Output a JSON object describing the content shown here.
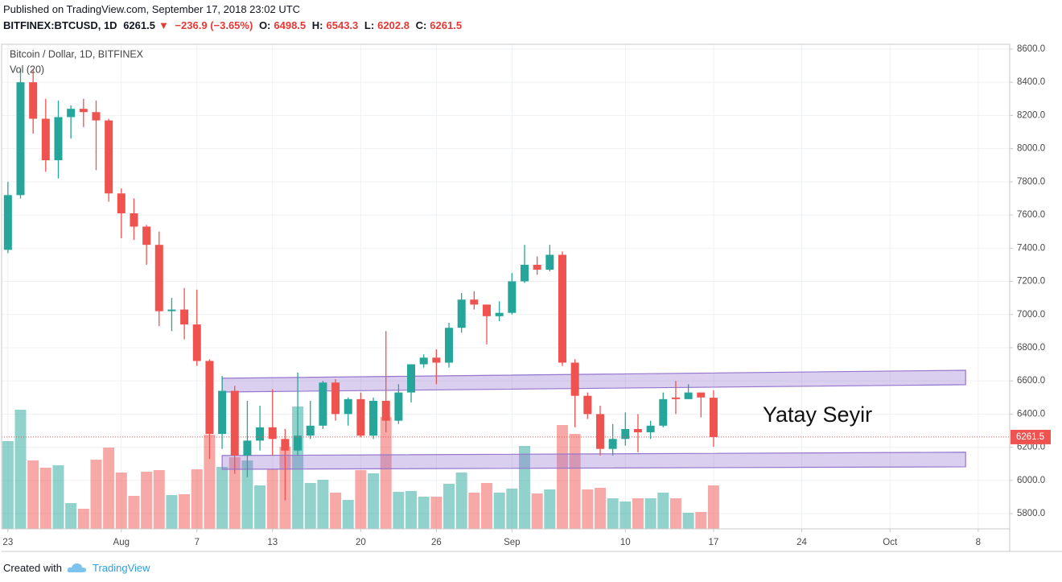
{
  "header": {
    "published": "Published on TradingView.com, September 17, 2018 23:02 UTC",
    "symbol": "BITFINEX:BTCUSD, 1D",
    "arrow": "▼",
    "change": "−236.9 (−3.65%)",
    "ohlc_labels": [
      "O:",
      "H:",
      "L:",
      "C:"
    ]
  },
  "footer": {
    "created_with": "Created with",
    "brand": "TradingView"
  },
  "chart_data": {
    "type": "candlestick",
    "title": "Bitcoin / Dollar, 1D, BITFINEX",
    "volume_label": "Vol (20)",
    "annotation": "Yatay Seyir",
    "up_color": "#26a69a",
    "down_color": "#ef5350",
    "band_color": "#9575cd",
    "grid": true,
    "x": [
      0,
      1,
      2,
      3,
      4,
      5,
      6,
      7,
      8,
      9,
      10,
      11,
      12,
      13,
      14,
      15,
      16,
      17,
      18,
      19,
      20,
      21,
      22,
      23,
      24,
      25,
      26,
      27,
      28,
      29,
      30,
      31,
      32,
      33,
      34,
      35,
      36,
      37,
      38,
      39,
      40,
      41,
      42,
      43,
      44,
      45,
      46,
      47,
      48,
      49,
      50,
      51,
      52,
      53,
      54,
      55,
      56
    ],
    "open": [
      7390,
      7720,
      8400,
      8180,
      7930,
      8190,
      8240,
      8220,
      8170,
      7730,
      7610,
      7530,
      7420,
      7020,
      7030,
      6940,
      6720,
      6280,
      6540,
      6150,
      6240,
      6320,
      6250,
      6180,
      6270,
      6330,
      6590,
      6400,
      6490,
      6270,
      6480,
      6360,
      6530,
      6700,
      6740,
      6710,
      6920,
      7090,
      7060,
      6990,
      7010,
      7200,
      7300,
      7270,
      7360,
      6710,
      6510,
      6400,
      6190,
      6250,
      6310,
      6290,
      6330,
      6500,
      6490,
      6530,
      6498.5
    ],
    "high": [
      7800,
      8480,
      8480,
      8300,
      8290,
      8260,
      8300,
      8290,
      8180,
      7760,
      7700,
      7540,
      7500,
      7100,
      7160,
      7150,
      6730,
      6630,
      6570,
      6480,
      6450,
      6550,
      6310,
      6650,
      6480,
      6600,
      6610,
      6500,
      6530,
      6500,
      6900,
      6580,
      6700,
      6760,
      6790,
      6950,
      7130,
      7140,
      7060,
      7080,
      7250,
      7420,
      7350,
      7420,
      7380,
      6730,
      6530,
      6450,
      6340,
      6410,
      6400,
      6360,
      6530,
      6600,
      6580,
      6530,
      6543.3
    ],
    "low": [
      7370,
      7700,
      8090,
      7860,
      7820,
      8060,
      8130,
      7870,
      7680,
      7460,
      7450,
      7300,
      6930,
      6900,
      6850,
      6690,
      6130,
      6190,
      6040,
      6020,
      6180,
      6150,
      5880,
      6150,
      6250,
      6310,
      6360,
      6330,
      6260,
      6250,
      6290,
      6340,
      6470,
      6680,
      6580,
      6680,
      6890,
      7030,
      6820,
      6960,
      7000,
      7190,
      7240,
      7260,
      6690,
      6320,
      6370,
      6150,
      6150,
      6210,
      6170,
      6250,
      6320,
      6400,
      6490,
      6380,
      6202.8
    ],
    "close": [
      7720,
      8400,
      8180,
      7930,
      8190,
      8240,
      8220,
      8170,
      7730,
      7610,
      7530,
      7420,
      7020,
      7030,
      6940,
      6720,
      6280,
      6540,
      6150,
      6240,
      6320,
      6250,
      6180,
      6270,
      6330,
      6590,
      6400,
      6490,
      6270,
      6480,
      6360,
      6530,
      6700,
      6740,
      6710,
      6920,
      7090,
      7060,
      6990,
      7010,
      7200,
      7300,
      7270,
      7360,
      6710,
      6510,
      6400,
      6190,
      6250,
      6310,
      6290,
      6330,
      6490,
      6490,
      6530,
      6500,
      6261.5
    ],
    "volume": [
      109,
      148,
      85,
      76,
      79,
      32,
      25,
      86,
      101,
      70,
      41,
      71,
      73,
      42,
      43,
      74,
      117,
      77,
      89,
      85,
      54,
      74,
      102,
      152,
      57,
      61,
      45,
      36,
      73,
      69,
      139,
      46,
      47,
      40,
      40,
      56,
      70,
      45,
      57,
      45,
      50,
      103,
      44,
      49,
      129,
      118,
      49,
      51,
      38,
      34,
      38,
      38,
      45,
      38,
      20,
      21,
      54
    ],
    "bands": [
      {
        "x": [
          17,
          76
        ],
        "low": [
          6533,
          6577
        ],
        "high": [
          6616,
          6664
        ]
      },
      {
        "x": [
          17,
          76
        ],
        "low": [
          6067,
          6082
        ],
        "high": [
          6150,
          6170
        ]
      }
    ],
    "xlim": [
      -0.5,
      79.5
    ],
    "xticks": [
      {
        "value": 0,
        "label": "23"
      },
      {
        "value": 9,
        "label": "Aug"
      },
      {
        "value": 15,
        "label": "7"
      },
      {
        "value": 21,
        "label": "13"
      },
      {
        "value": 28,
        "label": "20"
      },
      {
        "value": 34,
        "label": "26"
      },
      {
        "value": 40,
        "label": "Sep"
      },
      {
        "value": 49,
        "label": "10"
      },
      {
        "value": 56,
        "label": "17"
      },
      {
        "value": 63,
        "label": "24"
      },
      {
        "value": 70,
        "label": "Oct"
      },
      {
        "value": 77,
        "label": "8"
      }
    ],
    "ylim": [
      5708,
      8629
    ],
    "yticks": [
      {
        "value": 5800,
        "label": "5800.0"
      },
      {
        "value": 6000,
        "label": "6000.0"
      },
      {
        "value": 6200,
        "label": "6200.0"
      },
      {
        "value": 6400,
        "label": "6400.0"
      },
      {
        "value": 6600,
        "label": "6600.0"
      },
      {
        "value": 6800,
        "label": "6800.0"
      },
      {
        "value": 7000,
        "label": "7000.0"
      },
      {
        "value": 7200,
        "label": "7200.0"
      },
      {
        "value": 7400,
        "label": "7400.0"
      },
      {
        "value": 7600,
        "label": "7600.0"
      },
      {
        "value": 7800,
        "label": "7800.0"
      },
      {
        "value": 8000,
        "label": "8000.0"
      },
      {
        "value": 8200,
        "label": "8200.0"
      },
      {
        "value": 8400,
        "label": "8400.0"
      },
      {
        "value": 8600,
        "label": "8600.0"
      }
    ]
  }
}
